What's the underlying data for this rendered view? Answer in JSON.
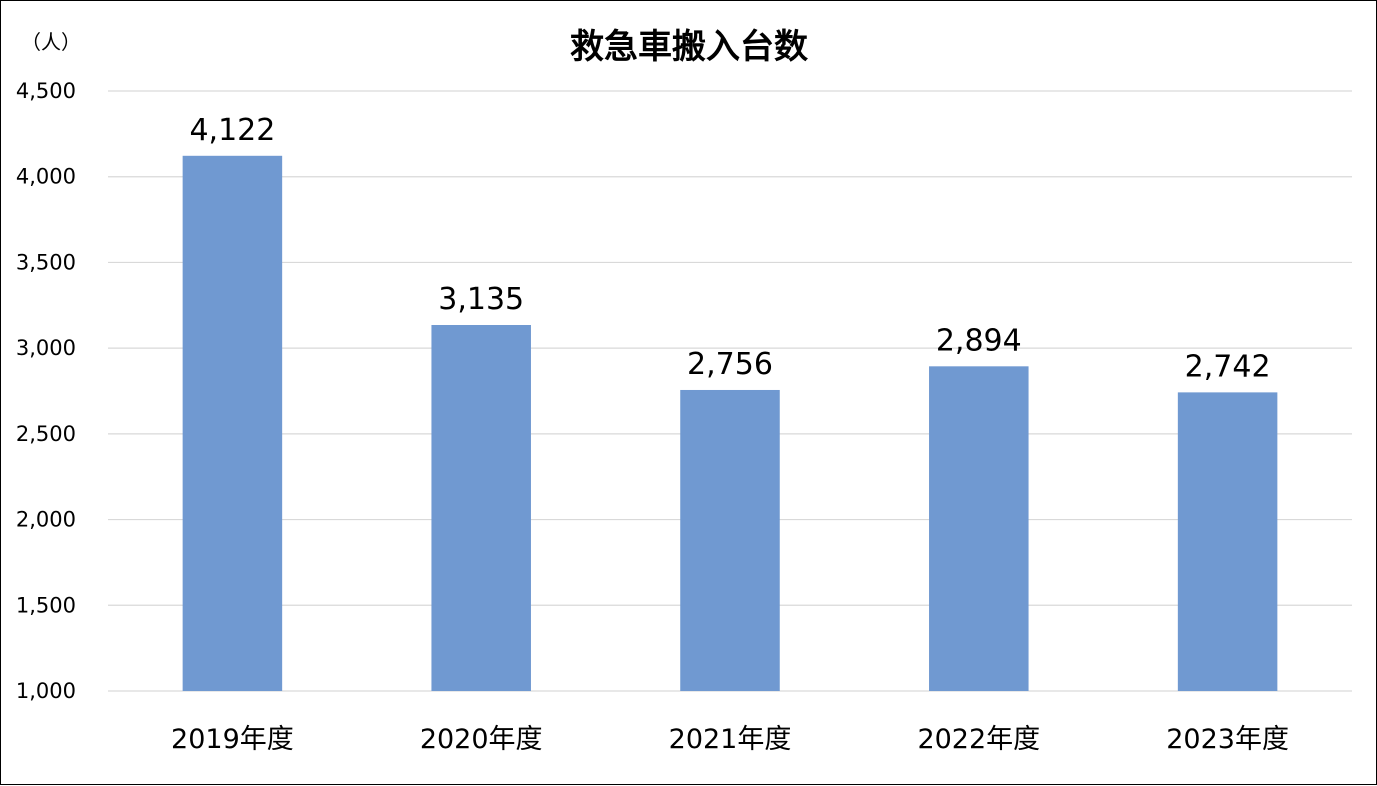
{
  "chart_data": {
    "type": "bar",
    "title": "救急車搬入台数",
    "unit_label": "（人）",
    "xlabel": "",
    "ylabel": "",
    "categories": [
      "2019年度",
      "2020年度",
      "2021年度",
      "2022年度",
      "2023年度"
    ],
    "values": [
      4122,
      3135,
      2756,
      2894,
      2742
    ],
    "value_labels": [
      "4,122",
      "3,135",
      "2,756",
      "2,894",
      "2,742"
    ],
    "ylim": [
      1000,
      4500
    ],
    "y_ticks": [
      1000,
      1500,
      2000,
      2500,
      3000,
      3500,
      4000,
      4500
    ],
    "y_tick_labels": [
      "1,000",
      "1,500",
      "2,000",
      "2,500",
      "3,000",
      "3,500",
      "4,000",
      "4,500"
    ],
    "grid": true,
    "legend": "none",
    "bar_color": "#7099d1"
  }
}
